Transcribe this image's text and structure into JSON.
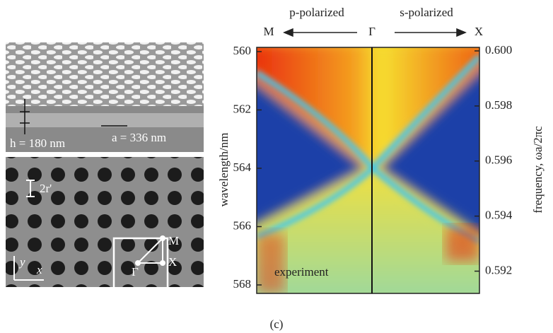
{
  "figure": {
    "panel_label": "(c)",
    "sem_top": {
      "height_label": "h = 180 nm",
      "period_label": "a = 336 nm"
    },
    "sem_bottom": {
      "radius_label": "2r'",
      "y_axis": "y",
      "x_axis": "x",
      "bz_M": "M",
      "bz_X": "X",
      "bz_Gamma": "Γ"
    },
    "header": {
      "left": "p-polarized",
      "right": "s-polarized",
      "M": "M",
      "Gamma": "Γ",
      "X": "X"
    },
    "map_annotation": "experiment",
    "left_axis": {
      "label": "wavelength/nm",
      "ticks": [
        560,
        562,
        564,
        566,
        568
      ],
      "lim": [
        560,
        568
      ]
    },
    "right_axis": {
      "label": "frequency, ωa/2πc",
      "ticks": [
        {
          "value": 0.6,
          "label": "0.600"
        },
        {
          "value": 0.598,
          "label": "0.598"
        },
        {
          "value": 0.596,
          "label": "0.596"
        },
        {
          "value": 0.594,
          "label": "0.594"
        },
        {
          "value": 0.592,
          "label": "0.592"
        }
      ],
      "lim": [
        0.6,
        0.5915
      ]
    }
  }
}
